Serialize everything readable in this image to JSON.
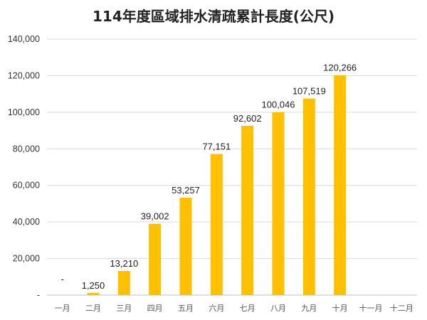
{
  "chart_data": {
    "type": "bar",
    "title": "114年度區域排水清疏累計長度(公尺)",
    "xlabel": "",
    "ylabel": "",
    "categories": [
      "一月",
      "二月",
      "三月",
      "四月",
      "五月",
      "六月",
      "七月",
      "八月",
      "九月",
      "十月",
      "十一月",
      "十二月"
    ],
    "values": [
      0,
      1250,
      13210,
      39002,
      53257,
      77151,
      92602,
      100046,
      107519,
      120266,
      null,
      null
    ],
    "data_labels": [
      "-",
      "1,250",
      "13,210",
      "39,002",
      "53,257",
      "77,151",
      "92,602",
      "100,046",
      "107,519",
      "120,266",
      "",
      ""
    ],
    "ylim": [
      0,
      140000
    ],
    "yticks": [
      0,
      20000,
      40000,
      60000,
      80000,
      100000,
      120000,
      140000
    ],
    "ytick_labels": [
      "-",
      "20,000",
      "40,000",
      "60,000",
      "80,000",
      "100,000",
      "120,000",
      "140,000"
    ],
    "grid": true,
    "legend": "none",
    "bar_color": "#FFC000"
  }
}
